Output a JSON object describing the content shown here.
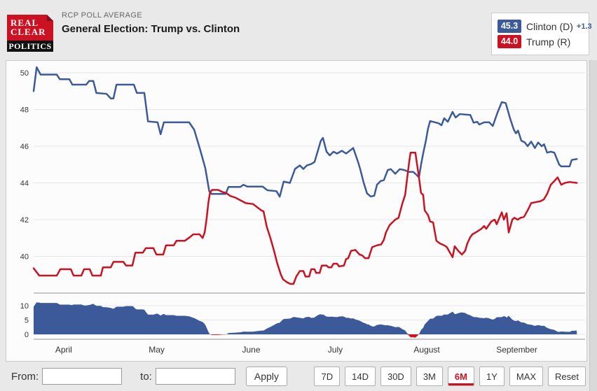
{
  "header": {
    "kicker": "RCP POLL AVERAGE",
    "title": "General Election: Trump vs. Clinton",
    "logo": {
      "line1": "REAL",
      "line2": "CLEAR",
      "line3": "POLITICS"
    }
  },
  "legend": [
    {
      "value": "45.3",
      "label": "Clinton (D)",
      "change": "+1.3",
      "color": "#3c5a99"
    },
    {
      "value": "44.0",
      "label": "Trump (R)",
      "change": "",
      "color": "#cc1122"
    }
  ],
  "toolbar": {
    "from_label": "From:",
    "to_label": "to:",
    "from_value": "",
    "to_value": "",
    "apply_label": "Apply",
    "ranges": [
      {
        "label": "7D",
        "active": false
      },
      {
        "label": "14D",
        "active": false
      },
      {
        "label": "30D",
        "active": false
      },
      {
        "label": "3M",
        "active": false
      },
      {
        "label": "6M",
        "active": true
      },
      {
        "label": "1Y",
        "active": false
      },
      {
        "label": "MAX",
        "active": false
      },
      {
        "label": "Reset",
        "active": false
      }
    ]
  },
  "colors": {
    "clinton": "#3c5a99",
    "trump": "#cc1122",
    "gridline": "#e6e6e6",
    "axis_line": "#b3b3b3",
    "axis_text": "#333333"
  },
  "chart_data": {
    "type": "line",
    "title": "General Election: Trump vs. Clinton",
    "x_axis": {
      "unit": "days",
      "origin_hint": "day 0 = late March 2016, 6-month window",
      "day_range": [
        0,
        185
      ],
      "months": [
        {
          "label": "April",
          "day": 10
        },
        {
          "label": "May",
          "day": 41
        },
        {
          "label": "June",
          "day": 72.5
        },
        {
          "label": "July",
          "day": 100.5
        },
        {
          "label": "August",
          "day": 131
        },
        {
          "label": "September",
          "day": 161
        }
      ]
    },
    "y_axis_main": {
      "ticks": [
        50,
        48,
        46,
        44,
        42,
        40
      ],
      "range": [
        37.9,
        50.6
      ]
    },
    "y_axis_spread": {
      "ticks": [
        10,
        5,
        0
      ],
      "range": [
        -3.3,
        13.1
      ],
      "note": "spread = Clinton minus Trump"
    },
    "grid": true,
    "legend_position": "top-right",
    "series": [
      {
        "name": "Clinton (D)",
        "color": "#3c5a99",
        "final_value": 45.3,
        "points": [
          [
            0,
            49.0
          ],
          [
            1,
            50.3
          ],
          [
            2.3,
            49.9
          ],
          [
            7.7,
            49.9
          ],
          [
            8.7,
            49.65
          ],
          [
            11.9,
            49.65
          ],
          [
            12.9,
            49.35
          ],
          [
            17.5,
            49.35
          ],
          [
            18.5,
            49.55
          ],
          [
            19.9,
            49.55
          ],
          [
            20.9,
            48.9
          ],
          [
            24.3,
            48.85
          ],
          [
            25.7,
            48.6
          ],
          [
            26.6,
            48.6
          ],
          [
            27.6,
            49.35
          ],
          [
            33.4,
            49.35
          ],
          [
            34.4,
            48.9
          ],
          [
            36.9,
            48.9
          ],
          [
            38.1,
            47.35
          ],
          [
            41.3,
            47.3
          ],
          [
            42.3,
            46.65
          ],
          [
            43.4,
            47.3
          ],
          [
            51.8,
            47.3
          ],
          [
            53.5,
            46.9
          ],
          [
            55.5,
            45.8
          ],
          [
            57.2,
            44.8
          ],
          [
            58.5,
            43.55
          ],
          [
            59.3,
            43.4
          ],
          [
            64,
            43.4
          ],
          [
            64.9,
            43.78
          ],
          [
            68.9,
            43.78
          ],
          [
            69.9,
            43.9
          ],
          [
            71.2,
            43.8
          ],
          [
            76.3,
            43.8
          ],
          [
            77.9,
            43.6
          ],
          [
            80.9,
            43.55
          ],
          [
            82,
            43.25
          ],
          [
            83.3,
            44.07
          ],
          [
            85.4,
            44.0
          ],
          [
            87.1,
            44.76
          ],
          [
            88.7,
            44.95
          ],
          [
            89.9,
            44.76
          ],
          [
            91,
            44.95
          ],
          [
            92.5,
            45.03
          ],
          [
            93.6,
            45.14
          ],
          [
            95.7,
            46.3
          ],
          [
            96.4,
            46.45
          ],
          [
            97.6,
            45.7
          ],
          [
            98.7,
            45.5
          ],
          [
            99.9,
            45.7
          ],
          [
            101.1,
            45.6
          ],
          [
            102.7,
            45.75
          ],
          [
            104.1,
            45.6
          ],
          [
            105.3,
            45.75
          ],
          [
            106.5,
            45.9
          ],
          [
            108.1,
            45.14
          ],
          [
            108.8,
            44.76
          ],
          [
            110,
            44.0
          ],
          [
            111.1,
            43.43
          ],
          [
            112.3,
            43.26
          ],
          [
            113.5,
            43.3
          ],
          [
            114.4,
            43.9
          ],
          [
            115.6,
            44.1
          ],
          [
            116.7,
            44.15
          ],
          [
            118,
            44.7
          ],
          [
            119,
            44.75
          ],
          [
            120.5,
            44.5
          ],
          [
            122,
            44.75
          ],
          [
            123.5,
            44.7
          ],
          [
            125,
            44.6
          ],
          [
            126.5,
            44.6
          ],
          [
            127.5,
            44.45
          ],
          [
            128.4,
            44.3
          ],
          [
            129.1,
            45.0
          ],
          [
            129.8,
            45.6
          ],
          [
            130.7,
            46.3
          ],
          [
            131.4,
            46.95
          ],
          [
            132.1,
            47.37
          ],
          [
            134.9,
            47.25
          ],
          [
            135.9,
            47.14
          ],
          [
            136.8,
            47.52
          ],
          [
            138,
            47.33
          ],
          [
            139.6,
            47.87
          ],
          [
            140.6,
            47.56
          ],
          [
            142,
            47.75
          ],
          [
            145.5,
            47.7
          ],
          [
            146.6,
            47.28
          ],
          [
            147.8,
            47.33
          ],
          [
            148.5,
            47.18
          ],
          [
            150.1,
            47.3
          ],
          [
            151.8,
            47.3
          ],
          [
            153,
            47.1
          ],
          [
            154.5,
            47.8
          ],
          [
            156,
            48.4
          ],
          [
            157.3,
            48.35
          ],
          [
            158.8,
            47.5
          ],
          [
            160,
            46.9
          ],
          [
            160.7,
            46.7
          ],
          [
            161.4,
            46.85
          ],
          [
            162.5,
            46.3
          ],
          [
            163.7,
            46.2
          ],
          [
            164.6,
            46.0
          ],
          [
            165.8,
            46.25
          ],
          [
            167,
            45.9
          ],
          [
            168.1,
            46.2
          ],
          [
            169.3,
            46.0
          ],
          [
            170.1,
            46.1
          ],
          [
            171.1,
            45.65
          ],
          [
            172.3,
            45.7
          ],
          [
            173.5,
            45.65
          ],
          [
            175.1,
            45.0
          ],
          [
            175.8,
            44.9
          ],
          [
            178.6,
            44.9
          ],
          [
            179.3,
            45.25
          ],
          [
            181,
            45.3
          ]
        ]
      },
      {
        "name": "Trump (R)",
        "color": "#cc1122",
        "final_value": 44.0,
        "points": [
          [
            0,
            39.35
          ],
          [
            1.9,
            38.95
          ],
          [
            7.7,
            38.95
          ],
          [
            8.9,
            39.3
          ],
          [
            12.4,
            39.3
          ],
          [
            13.3,
            38.95
          ],
          [
            15.9,
            38.95
          ],
          [
            16.8,
            39.3
          ],
          [
            18.7,
            39.3
          ],
          [
            19.6,
            38.95
          ],
          [
            22.4,
            38.95
          ],
          [
            23.1,
            39.4
          ],
          [
            25.7,
            39.4
          ],
          [
            26.6,
            39.7
          ],
          [
            29.9,
            39.7
          ],
          [
            30.8,
            39.5
          ],
          [
            32.9,
            39.5
          ],
          [
            33.9,
            40.2
          ],
          [
            36.4,
            40.2
          ],
          [
            37.4,
            40.45
          ],
          [
            39.9,
            40.45
          ],
          [
            40.9,
            40.1
          ],
          [
            43.2,
            40.1
          ],
          [
            44.1,
            40.6
          ],
          [
            46.7,
            40.6
          ],
          [
            47.6,
            40.85
          ],
          [
            50.4,
            40.85
          ],
          [
            52.1,
            41.05
          ],
          [
            53.2,
            41.2
          ],
          [
            55.3,
            41.2
          ],
          [
            56.3,
            41.0
          ],
          [
            57,
            41.3
          ],
          [
            57.6,
            42.0
          ],
          [
            58.2,
            42.9
          ],
          [
            58.8,
            43.5
          ],
          [
            59.5,
            43.62
          ],
          [
            61.5,
            43.62
          ],
          [
            63,
            43.5
          ],
          [
            64.2,
            43.45
          ],
          [
            65.4,
            43.3
          ],
          [
            67.2,
            43.2
          ],
          [
            70.7,
            42.9
          ],
          [
            73.1,
            42.85
          ],
          [
            75.9,
            42.5
          ],
          [
            76.6,
            42.45
          ],
          [
            77.7,
            41.6
          ],
          [
            78.9,
            41.0
          ],
          [
            80.1,
            40.3
          ],
          [
            81.2,
            39.6
          ],
          [
            82.4,
            39.0
          ],
          [
            83.1,
            38.75
          ],
          [
            84.3,
            38.6
          ],
          [
            85.5,
            38.5
          ],
          [
            86.6,
            38.5
          ],
          [
            87.5,
            38.9
          ],
          [
            88.7,
            39.2
          ],
          [
            89.9,
            39.2
          ],
          [
            90.6,
            38.9
          ],
          [
            91.8,
            38.9
          ],
          [
            92.5,
            39.3
          ],
          [
            93.6,
            39.3
          ],
          [
            94.1,
            39.1
          ],
          [
            95.3,
            39.1
          ],
          [
            96,
            39.5
          ],
          [
            97.6,
            39.5
          ],
          [
            98.3,
            39.4
          ],
          [
            99.2,
            39.4
          ],
          [
            99.9,
            39.6
          ],
          [
            101.1,
            39.6
          ],
          [
            101.8,
            39.45
          ],
          [
            103.4,
            39.5
          ],
          [
            104.1,
            39.85
          ],
          [
            104.8,
            39.9
          ],
          [
            105.8,
            40.3
          ],
          [
            107.2,
            40.35
          ],
          [
            108.6,
            40.1
          ],
          [
            109.5,
            40.05
          ],
          [
            110.4,
            39.9
          ],
          [
            111.6,
            39.9
          ],
          [
            112.8,
            40.5
          ],
          [
            114.4,
            40.6
          ],
          [
            115.8,
            40.65
          ],
          [
            116.7,
            40.9
          ],
          [
            117.4,
            41.3
          ],
          [
            118.6,
            41.7
          ],
          [
            120.5,
            42.0
          ],
          [
            121.6,
            42.1
          ],
          [
            122.8,
            42.85
          ],
          [
            123.8,
            43.35
          ],
          [
            124.5,
            44.3
          ],
          [
            125.1,
            45.1
          ],
          [
            125.6,
            45.65
          ],
          [
            127.2,
            45.65
          ],
          [
            128.4,
            44.3
          ],
          [
            129.1,
            43.45
          ],
          [
            129.8,
            43.35
          ],
          [
            130.3,
            42.5
          ],
          [
            131.4,
            42.25
          ],
          [
            132.1,
            41.9
          ],
          [
            133.1,
            41.85
          ],
          [
            134.2,
            40.85
          ],
          [
            135.4,
            40.7
          ],
          [
            136.8,
            40.6
          ],
          [
            137.7,
            40.5
          ],
          [
            138.7,
            40.2
          ],
          [
            139.1,
            40.1
          ],
          [
            139.6,
            39.95
          ],
          [
            140.3,
            40.55
          ],
          [
            141.5,
            40.3
          ],
          [
            142.7,
            40.1
          ],
          [
            143.8,
            40.3
          ],
          [
            144.5,
            40.7
          ],
          [
            145.5,
            41.05
          ],
          [
            146.2,
            41.2
          ],
          [
            147.8,
            41.35
          ],
          [
            149.2,
            41.5
          ],
          [
            150.1,
            41.65
          ],
          [
            150.8,
            41.5
          ],
          [
            152.5,
            41.9
          ],
          [
            153.6,
            42.0
          ],
          [
            154.3,
            41.75
          ],
          [
            156,
            42.4
          ],
          [
            156.7,
            42.0
          ],
          [
            157.6,
            42.35
          ],
          [
            158.3,
            41.3
          ],
          [
            159.5,
            42.0
          ],
          [
            160.2,
            42.1
          ],
          [
            161.3,
            42.0
          ],
          [
            162.3,
            42.1
          ],
          [
            163.4,
            42.15
          ],
          [
            164.6,
            42.5
          ],
          [
            165.8,
            42.9
          ],
          [
            167.2,
            42.95
          ],
          [
            168.8,
            43.0
          ],
          [
            170,
            43.1
          ],
          [
            171.1,
            43.4
          ],
          [
            172.3,
            43.9
          ],
          [
            173.5,
            44.1
          ],
          [
            174.6,
            44.3
          ],
          [
            175.8,
            43.9
          ],
          [
            177,
            44.0
          ],
          [
            178.6,
            44.05
          ],
          [
            181,
            44.0
          ]
        ]
      }
    ],
    "spread_panel": {
      "derived": "Clinton minus Trump",
      "positive_color": "#3c5a99",
      "negative_color": "#cc1122"
    }
  }
}
